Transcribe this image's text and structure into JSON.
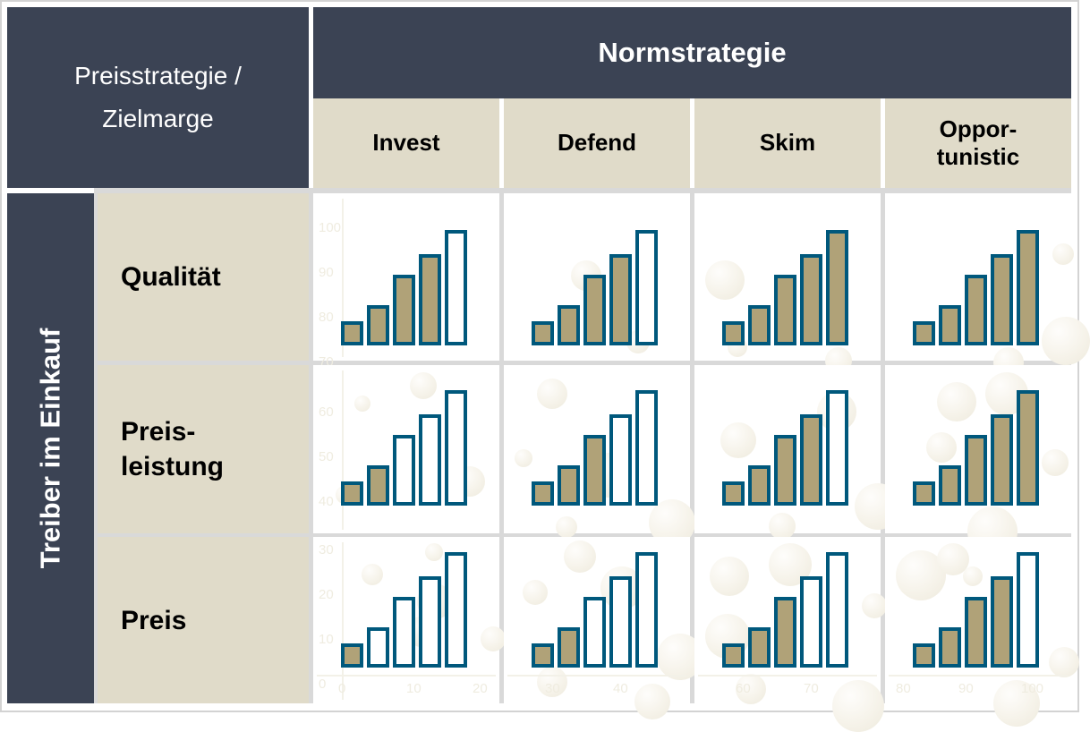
{
  "matrix": {
    "corner_header": "Preisstrategie /\nZielmarge",
    "top_header": "Normstrategie",
    "side_header": "Treiber im Einkauf",
    "column_headers": [
      "Invest",
      "Defend",
      "Skim",
      "Oppor-\ntunistic"
    ],
    "row_headers": [
      "Qualität",
      "Preis-\nleistung",
      "Preis"
    ]
  },
  "mini_bar_chart": {
    "type": "bar",
    "bars_per_chart": 5,
    "relative_heights_pct": [
      21,
      35,
      61,
      79,
      100
    ],
    "fill_color": "#B0A278",
    "outline_color": "#00587C",
    "empty_fill_color": "#FFFFFF",
    "note_filled_bars_are_leftmost": true
  },
  "cells": [
    {
      "row": "Qualität",
      "col": "Invest",
      "filled_bars": 4,
      "empty_bars": 1,
      "y_axis_labels": [
        "100",
        "90",
        "80",
        "70"
      ],
      "x_axis_labels": []
    },
    {
      "row": "Qualität",
      "col": "Defend",
      "filled_bars": 4,
      "empty_bars": 1,
      "y_axis_labels": [],
      "x_axis_labels": []
    },
    {
      "row": "Qualität",
      "col": "Skim",
      "filled_bars": 5,
      "empty_bars": 0,
      "y_axis_labels": [],
      "x_axis_labels": []
    },
    {
      "row": "Qualität",
      "col": "Oppor-tunistic",
      "filled_bars": 5,
      "empty_bars": 0,
      "y_axis_labels": [],
      "x_axis_labels": []
    },
    {
      "row": "Preis-leistung",
      "col": "Invest",
      "filled_bars": 2,
      "empty_bars": 3,
      "y_axis_labels": [
        "60",
        "50",
        "40"
      ],
      "x_axis_labels": []
    },
    {
      "row": "Preis-leistung",
      "col": "Defend",
      "filled_bars": 3,
      "empty_bars": 2,
      "y_axis_labels": [],
      "x_axis_labels": []
    },
    {
      "row": "Preis-leistung",
      "col": "Skim",
      "filled_bars": 4,
      "empty_bars": 1,
      "y_axis_labels": [],
      "x_axis_labels": []
    },
    {
      "row": "Preis-leistung",
      "col": "Oppor-tunistic",
      "filled_bars": 5,
      "empty_bars": 0,
      "y_axis_labels": [],
      "x_axis_labels": []
    },
    {
      "row": "Preis",
      "col": "Invest",
      "filled_bars": 1,
      "empty_bars": 4,
      "y_axis_labels": [
        "30",
        "20",
        "10",
        "0"
      ],
      "x_axis_labels": [
        "0",
        "10",
        "20"
      ]
    },
    {
      "row": "Preis",
      "col": "Defend",
      "filled_bars": 2,
      "empty_bars": 3,
      "y_axis_labels": [],
      "x_axis_labels": [
        "30",
        "40"
      ]
    },
    {
      "row": "Preis",
      "col": "Skim",
      "filled_bars": 3,
      "empty_bars": 2,
      "y_axis_labels": [],
      "x_axis_labels": [
        "60",
        "70"
      ]
    },
    {
      "row": "Preis",
      "col": "Oppor-tunistic",
      "filled_bars": 4,
      "empty_bars": 1,
      "y_axis_labels": [],
      "x_axis_labels": [
        "80",
        "90",
        "100"
      ]
    }
  ],
  "colors": {
    "header_dark": "#3B4354",
    "header_beige": "#E0DBC9",
    "grid_line": "#D9D9D9",
    "cell_background": "#FFFFFF"
  }
}
